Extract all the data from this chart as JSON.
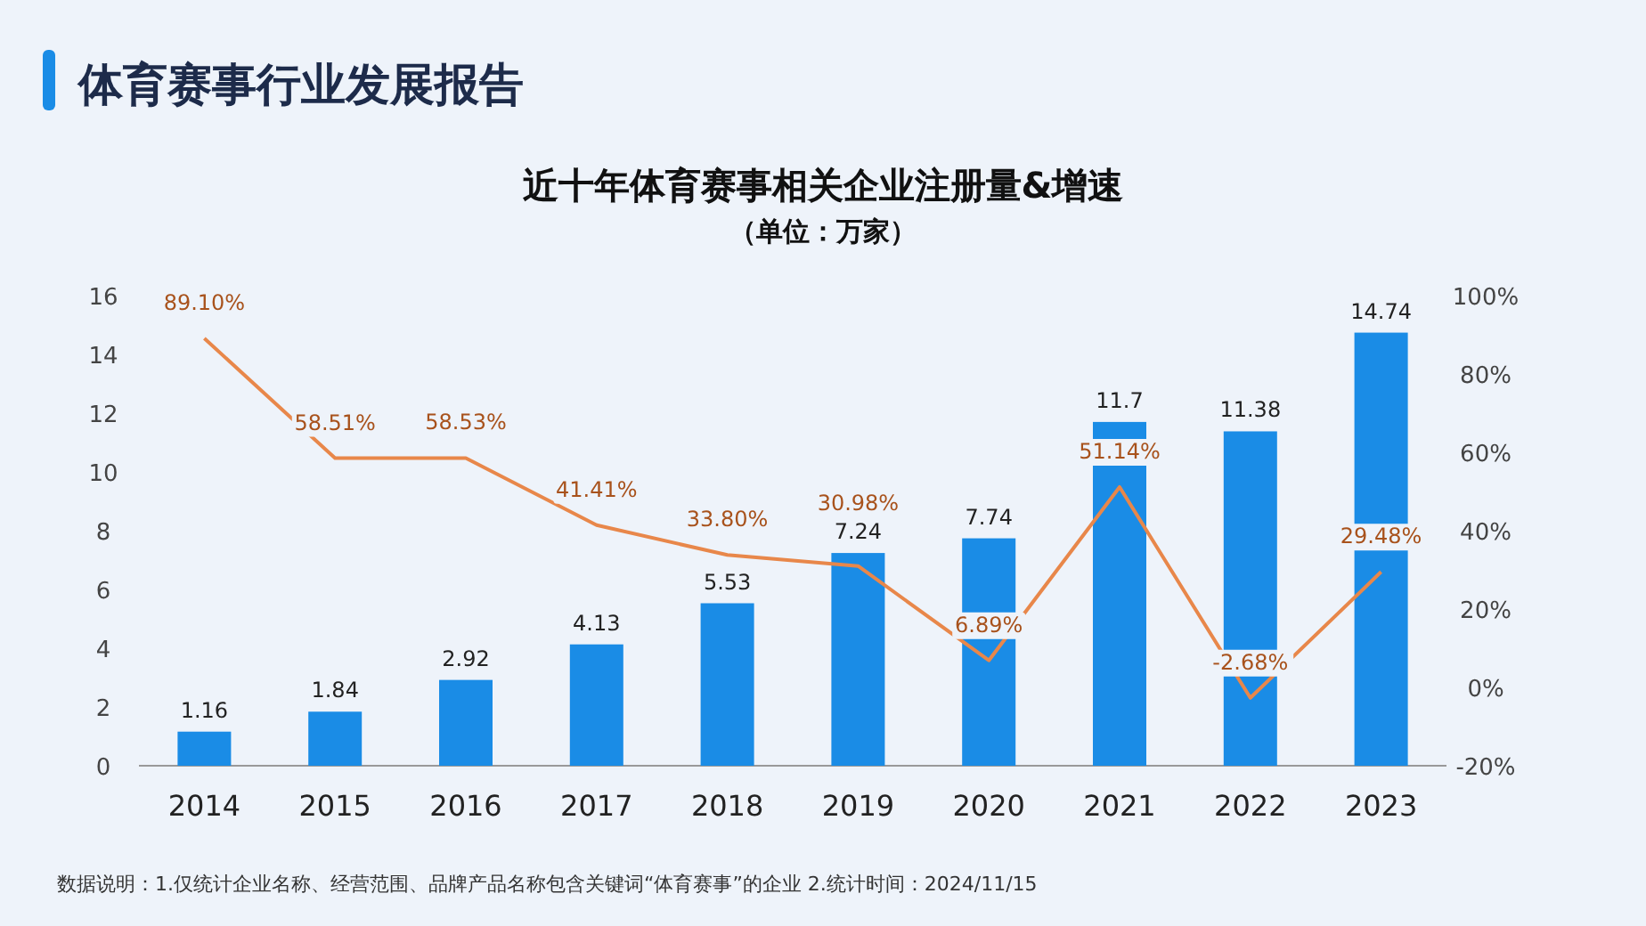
{
  "chart_data": {
    "type": "bar",
    "title": "近十年体育赛事相关企业注册量&增速",
    "subtitle": "（单位：万家）",
    "annotations": [
      "体育赛事行业发展报告",
      "数据说明：1.仅统计企业名称、经营范围、品牌产品名称包含关键词“体育赛事”的企业  2.统计时间：2024/11/15"
    ],
    "categories": [
      "2014",
      "2015",
      "2016",
      "2017",
      "2018",
      "2019",
      "2020",
      "2021",
      "2022",
      "2023"
    ],
    "series": [
      {
        "color": "#1a8ce6",
        "values": [
          1.16,
          1.84,
          2.92,
          4.13,
          5.53,
          7.24,
          7.74,
          11.7,
          11.38,
          14.74
        ],
        "value_labels": [
          "1.16",
          "1.84",
          "2.92",
          "4.13",
          "5.53",
          "7.24",
          "7.74",
          "11.7",
          "11.38",
          "14.74"
        ]
      },
      {
        "type": "line",
        "axis": "y2",
        "color": "#e8874a",
        "values": [
          89.1,
          58.51,
          58.53,
          41.41,
          33.8,
          30.98,
          6.89,
          51.14,
          -2.68,
          29.48
        ],
        "value_labels": [
          "89.10%",
          "58.51%",
          "58.53%",
          "41.41%",
          "33.80%",
          "30.98%",
          "6.89%",
          "51.14%",
          "-2.68%",
          "29.48%"
        ]
      }
    ],
    "ylim": [
      0,
      16
    ],
    "yticks": [
      0,
      2,
      4,
      6,
      8,
      10,
      12,
      14,
      16
    ],
    "y2lim": [
      -20,
      100
    ],
    "y2ticks": [
      {
        "value": -20,
        "label": "-20%"
      },
      {
        "value": 0,
        "label": "0%"
      },
      {
        "value": 20,
        "label": "20%"
      },
      {
        "value": 40,
        "label": "40%"
      },
      {
        "value": 60,
        "label": "60%"
      },
      {
        "value": 80,
        "label": "80%"
      },
      {
        "value": 100,
        "label": "100%"
      }
    ],
    "grid": false,
    "marker": "none",
    "line_style": "solid"
  }
}
